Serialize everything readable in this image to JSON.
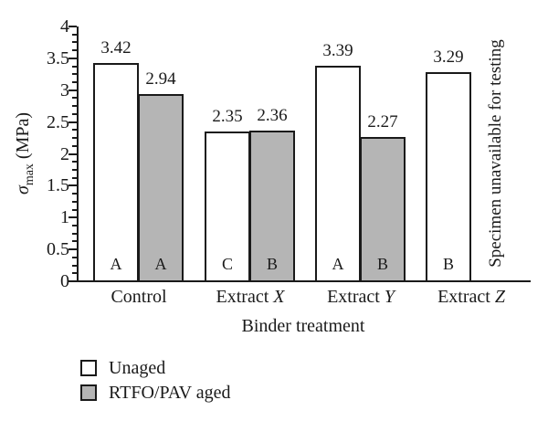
{
  "chart_data": {
    "type": "bar",
    "title": "",
    "categories": [
      "Control",
      "Extract X",
      "Extract Y",
      "Extract Z"
    ],
    "series": [
      {
        "name": "Unaged",
        "fill": "#ffffff",
        "values": [
          3.42,
          2.35,
          3.39,
          3.29
        ],
        "letters": [
          "A",
          "C",
          "A",
          "B"
        ]
      },
      {
        "name": "RTFO/PAV aged",
        "fill": "#b5b5b5",
        "values": [
          2.94,
          2.36,
          2.27,
          null
        ],
        "letters": [
          "A",
          "B",
          "B",
          null
        ]
      }
    ],
    "xlabel": "Binder treatment",
    "ylabel": "σmax (MPa)",
    "ylabel_parts": {
      "sigma": "σ",
      "sub": "max",
      "unit": " (MPa)"
    },
    "ylim": [
      0,
      4
    ],
    "ytick_step": 0.5,
    "y_minor_tick_step": 0.125,
    "ytick_labels": [
      "0",
      "0.5",
      "1",
      "1.5",
      "2",
      "2.5",
      "3",
      "3.5",
      "4"
    ],
    "grid": false,
    "value_label_decimals": 2,
    "bar_edge_color": "#1a1a1a",
    "missing_data_note": "Specimen unavailable for testing",
    "legend_position": "below-left"
  }
}
